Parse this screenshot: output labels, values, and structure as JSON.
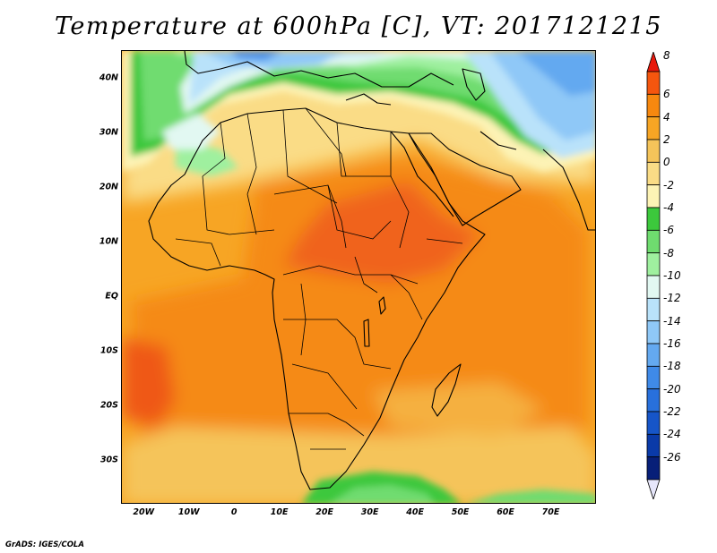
{
  "title": "Temperature at 600hPa [C], VT: 2017121215",
  "credit": "GrADS: IGES/COLA",
  "map": {
    "projection": "lat-lon",
    "lon_range": [
      -25,
      80
    ],
    "lat_range": [
      -38,
      45
    ],
    "lat_ticks": [
      {
        "label": "40N",
        "lat": 40
      },
      {
        "label": "30N",
        "lat": 30
      },
      {
        "label": "20N",
        "lat": 20
      },
      {
        "label": "10N",
        "lat": 10
      },
      {
        "label": "EQ",
        "lat": 0
      },
      {
        "label": "10S",
        "lat": -10
      },
      {
        "label": "20S",
        "lat": -20
      },
      {
        "label": "30S",
        "lat": -30
      }
    ],
    "lon_ticks": [
      {
        "label": "20W",
        "lon": -20
      },
      {
        "label": "10W",
        "lon": -10
      },
      {
        "label": "0",
        "lon": 0
      },
      {
        "label": "10E",
        "lon": 10
      },
      {
        "label": "20E",
        "lon": 20
      },
      {
        "label": "30E",
        "lon": 30
      },
      {
        "label": "40E",
        "lon": 40
      },
      {
        "label": "50E",
        "lon": 50
      },
      {
        "label": "60E",
        "lon": 60
      },
      {
        "label": "70E",
        "lon": 70
      }
    ]
  },
  "colorbar": {
    "labels": [
      "8",
      "6",
      "4",
      "2",
      "0",
      "-2",
      "-4",
      "-6",
      "-8",
      "-10",
      "-12",
      "-14",
      "-16",
      "-18",
      "-20",
      "-22",
      "-24",
      "-26"
    ],
    "colors": [
      "#e8190c",
      "#f5560e",
      "#f7880f",
      "#f7a524",
      "#f5c45a",
      "#fadc86",
      "#fdf3b5",
      "#3cc83c",
      "#6fdc6f",
      "#9ff09f",
      "#e2f8f2",
      "#b9e2fa",
      "#8fc8f7",
      "#64a9f0",
      "#3f8ae8",
      "#2870dc",
      "#1655c8",
      "#0a3aa8",
      "#071f78",
      "#e6e6fa"
    ]
  }
}
